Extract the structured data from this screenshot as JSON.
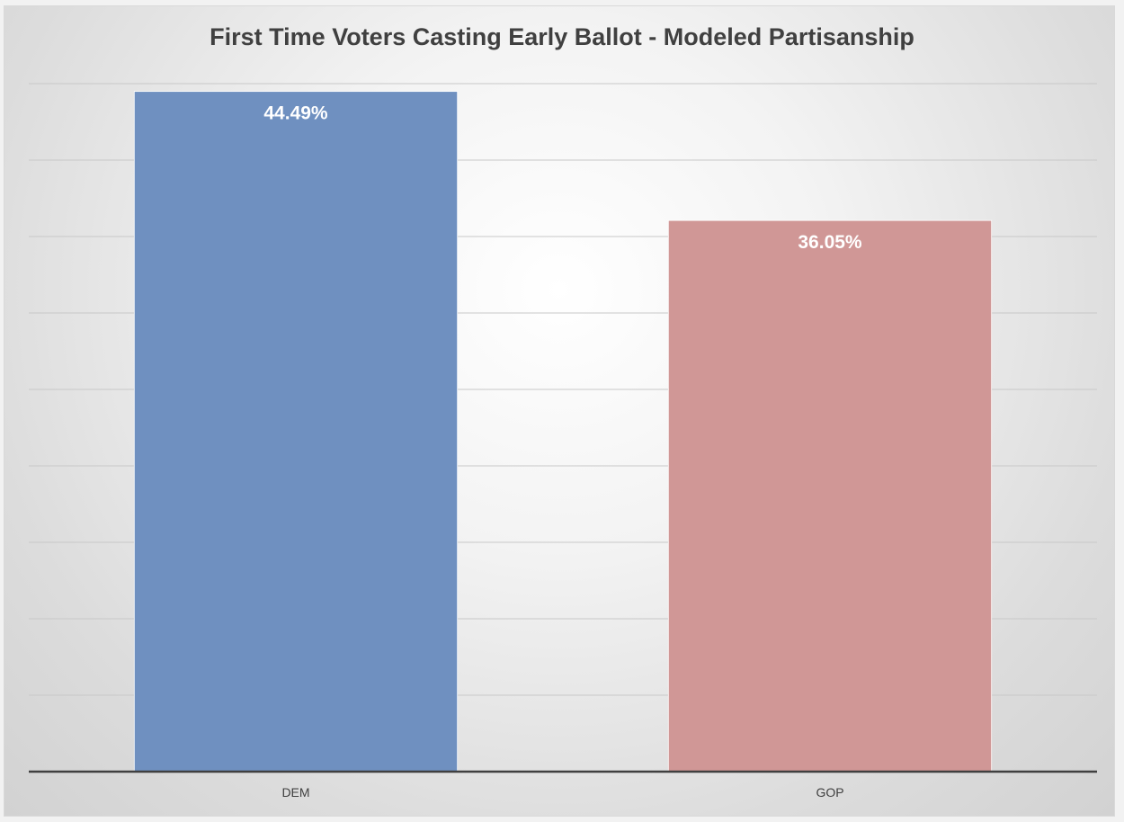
{
  "chart_data": {
    "type": "bar",
    "title": "First Time Voters Casting Early Ballot - Modeled Partisanship",
    "categories": [
      "DEM",
      "GOP"
    ],
    "values": [
      44.49,
      36.05
    ],
    "data_labels": [
      "44.49%",
      "36.05%"
    ],
    "bar_colors": [
      "#6f90c0",
      "#d09796"
    ],
    "ylim": [
      0,
      50
    ],
    "gridlines": true,
    "legend": "none",
    "xlabel": "",
    "ylabel": ""
  }
}
